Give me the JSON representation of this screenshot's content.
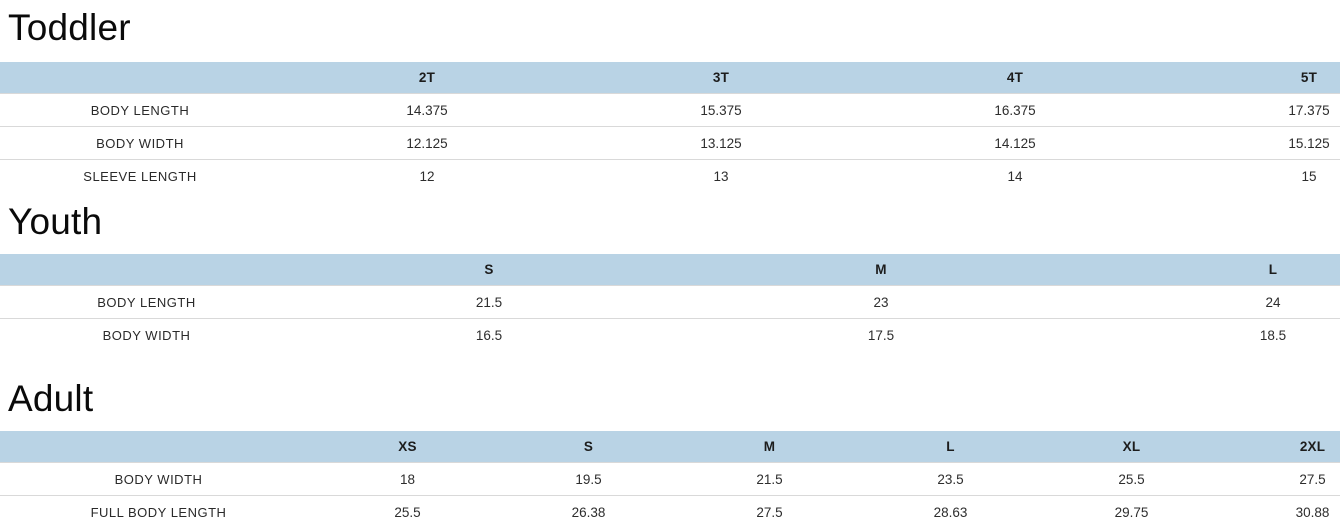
{
  "style": {
    "header_bg": "#b9d3e5",
    "row_divider": "#d9d9d9",
    "heading_color": "#0a0a0a",
    "cell_text_color": "#2d2d2d"
  },
  "sections": [
    {
      "title": "Toddler",
      "columns": [
        "2T",
        "3T",
        "4T",
        "5T"
      ],
      "rows": [
        {
          "label": "BODY LENGTH",
          "values": [
            "14.375",
            "15.375",
            "16.375",
            "17.375"
          ]
        },
        {
          "label": "BODY WIDTH",
          "values": [
            "12.125",
            "13.125",
            "14.125",
            "15.125"
          ]
        },
        {
          "label": "SLEEVE LENGTH",
          "values": [
            "12",
            "13",
            "14",
            "15"
          ]
        }
      ]
    },
    {
      "title": "Youth",
      "columns": [
        "S",
        "M",
        "L"
      ],
      "rows": [
        {
          "label": "BODY LENGTH",
          "values": [
            "21.5",
            "23",
            "24"
          ]
        },
        {
          "label": "BODY WIDTH",
          "values": [
            "16.5",
            "17.5",
            "18.5"
          ]
        }
      ]
    },
    {
      "title": "Adult",
      "columns": [
        "XS",
        "S",
        "M",
        "L",
        "XL",
        "2XL"
      ],
      "rows": [
        {
          "label": "BODY WIDTH",
          "values": [
            "18",
            "19.5",
            "21.5",
            "23.5",
            "25.5",
            "27.5"
          ]
        },
        {
          "label": "FULL BODY LENGTH",
          "values": [
            "25.5",
            "26.38",
            "27.5",
            "28.63",
            "29.75",
            "30.88"
          ]
        }
      ]
    }
  ]
}
